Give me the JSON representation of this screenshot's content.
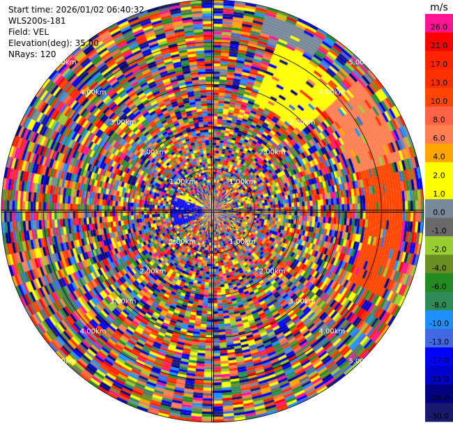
{
  "header": {
    "start_time": "Start time: 2026/01/02 06:40:32",
    "instrument": "WLS200s-181",
    "field": "Field: VEL",
    "elevation": "Elevation(deg): 35.00",
    "nrays": "NRays: 120"
  },
  "chart_data": {
    "type": "heatmap",
    "projection": "polar-ppi",
    "nrays": 120,
    "elevation_deg": 35.0,
    "range_rings": [
      {
        "label": "1.00km"
      },
      {
        "label": "2.00km"
      },
      {
        "label": "3.00km"
      },
      {
        "label": "4.00km"
      },
      {
        "label": "5.00km"
      }
    ],
    "colorbar": {
      "unit": "m/s",
      "levels": [
        {
          "label": "26.0",
          "color": "#ff1493"
        },
        {
          "label": "21.0",
          "color": "#ff0000"
        },
        {
          "label": "17.0",
          "color": "#ff2400"
        },
        {
          "label": "13.0",
          "color": "#ff3000"
        },
        {
          "label": "10.0",
          "color": "#ff4500"
        },
        {
          "label": "8.0",
          "color": "#ff6347"
        },
        {
          "label": "6.0",
          "color": "#ff7f50"
        },
        {
          "label": "4.0",
          "color": "#ffa500"
        },
        {
          "label": "2.0",
          "color": "#ffff00"
        },
        {
          "label": "1.0",
          "color": "#ffff00"
        },
        {
          "label": "0.0",
          "color": "#778899"
        },
        {
          "label": "-1.0",
          "color": "#696969"
        },
        {
          "label": "-2.0",
          "color": "#9acd32"
        },
        {
          "label": "-4.0",
          "color": "#6b8e23"
        },
        {
          "label": "-6.0",
          "color": "#228b22"
        },
        {
          "label": "-8.0",
          "color": "#2e8b57"
        },
        {
          "label": "-10.0",
          "color": "#1e90ff"
        },
        {
          "label": "-13.0",
          "color": "#4169e1"
        },
        {
          "label": "-17.0",
          "color": "#0000ff"
        },
        {
          "label": "-21.0",
          "color": "#0000cd"
        },
        {
          "label": "-26.0",
          "color": "#000080"
        },
        {
          "label": "-30.0",
          "color": "#191970"
        }
      ]
    },
    "features": [
      {
        "azimuth_from_deg": 20,
        "azimuth_to_deg": 45,
        "range_from_frac": 0.55,
        "range_to_frac": 0.85,
        "color": "#ffff00"
      },
      {
        "azimuth_from_deg": 15,
        "azimuth_to_deg": 30,
        "range_from_frac": 0.88,
        "range_to_frac": 0.96,
        "color": "#778899"
      },
      {
        "azimuth_from_deg": 48,
        "azimuth_to_deg": 72,
        "range_from_frac": 0.7,
        "range_to_frac": 0.92,
        "color": "#ff7f50"
      },
      {
        "azimuth_from_deg": 75,
        "azimuth_to_deg": 115,
        "range_from_frac": 0.72,
        "range_to_frac": 0.9,
        "color": "#ff4500"
      },
      {
        "azimuth_from_deg": 290,
        "azimuth_to_deg": 302,
        "range_from_frac": 0.05,
        "range_to_frac": 0.18,
        "color": "#ffff00"
      },
      {
        "azimuth_from_deg": 245,
        "azimuth_to_deg": 290,
        "range_from_frac": 0.05,
        "range_to_frac": 0.2,
        "color": "#0000ff"
      }
    ]
  }
}
